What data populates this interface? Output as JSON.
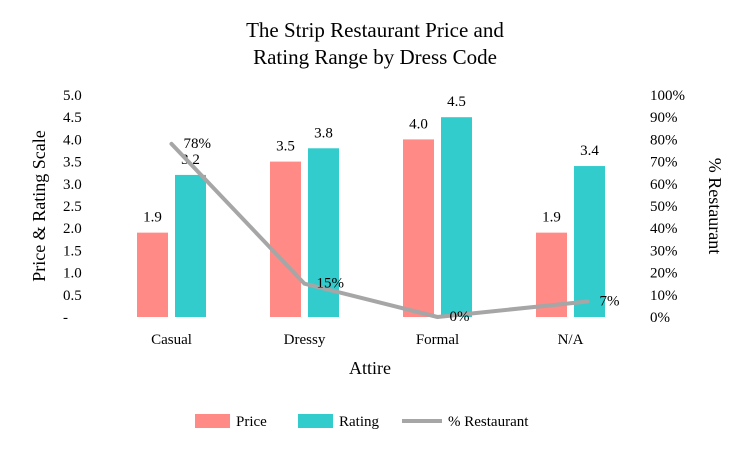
{
  "chart_data": {
    "type": "bar",
    "title": [
      "The Strip Restaurant Price and",
      "Rating Range by Dress Code"
    ],
    "xlabel": "Attire",
    "ylabel": "Price & Rating Scale",
    "y2label": "% Restaurant",
    "categories": [
      "Casual",
      "Dressy",
      "Formal",
      "N/A"
    ],
    "ylim": [
      0,
      5
    ],
    "y_ticks": [
      "-",
      "0.5",
      "1.0",
      "1.5",
      "2.0",
      "2.5",
      "3.0",
      "3.5",
      "4.0",
      "4.5",
      "5.0"
    ],
    "y2lim": [
      0,
      100
    ],
    "y2_ticks": [
      "0%",
      "10%",
      "20%",
      "30%",
      "40%",
      "50%",
      "60%",
      "70%",
      "80%",
      "90%",
      "100%"
    ],
    "legend_position": "bottom",
    "series": [
      {
        "name": "Price",
        "kind": "bar",
        "axis": "left",
        "color": "#FF8A86",
        "values": [
          1.9,
          3.5,
          4.0,
          1.9
        ],
        "labels": [
          "1.9",
          "3.5",
          "4.0",
          "1.9"
        ]
      },
      {
        "name": "Rating",
        "kind": "bar",
        "axis": "left",
        "color": "#33CCCC",
        "values": [
          3.2,
          3.8,
          4.5,
          3.4
        ],
        "labels": [
          "3.2",
          "3.8",
          "4.5",
          "3.4"
        ]
      },
      {
        "name": "% Restaurant",
        "kind": "line",
        "axis": "right",
        "color": "#A6A6A6",
        "values": [
          78,
          15,
          0,
          7
        ],
        "labels": [
          "78%",
          "15%",
          "0%",
          "7%"
        ]
      }
    ]
  }
}
